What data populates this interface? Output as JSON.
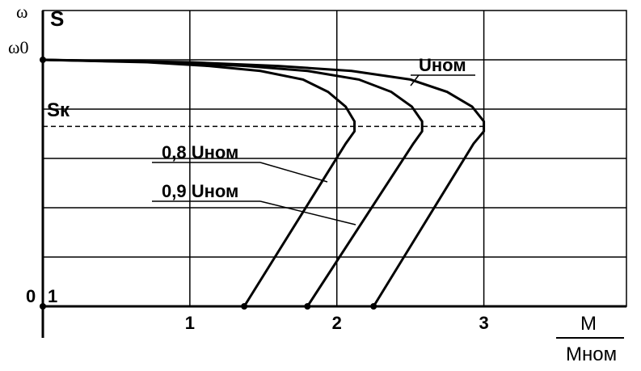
{
  "chart_data": {
    "type": "line",
    "x_label": {
      "numerator": "M",
      "denominator": "Mном"
    },
    "y_labels": [
      "ω",
      "S"
    ],
    "omega0_label": "ω0",
    "zero_label": "0",
    "sk_label": "Sк",
    "sk": 0.27,
    "xlim": [
      0,
      3.97
    ],
    "ylim": [
      -0.2,
      1
    ],
    "xticks": [
      1,
      2,
      3
    ],
    "yticks": [
      {
        "value": 1,
        "label": "1"
      }
    ],
    "ygrid": [
      0,
      0.2,
      0.4,
      0.6,
      0.8
    ],
    "grid": true,
    "color": "#000000",
    "series": [
      {
        "name": "Uном",
        "color": "#000000",
        "x": [
          0,
          1,
          1.6,
          2.1,
          2.5,
          2.75,
          2.92,
          3.0,
          3.0,
          2.93,
          2.25
        ],
        "values": [
          0,
          0.01,
          0.025,
          0.045,
          0.08,
          0.13,
          0.19,
          0.25,
          0.29,
          0.34,
          1
        ]
      },
      {
        "name": "0,9 Uном",
        "color": "#000000",
        "x": [
          0,
          0.86,
          1.38,
          1.8,
          2.15,
          2.37,
          2.51,
          2.58,
          2.58,
          2.52,
          1.8
        ],
        "values": [
          0,
          0.01,
          0.025,
          0.045,
          0.08,
          0.13,
          0.19,
          0.25,
          0.29,
          0.34,
          1
        ]
      },
      {
        "name": "0,8 Uном",
        "color": "#000000",
        "x": [
          0,
          0.71,
          1.13,
          1.48,
          1.77,
          1.94,
          2.06,
          2.12,
          2.12,
          2.06,
          1.37
        ],
        "values": [
          0,
          0.01,
          0.025,
          0.045,
          0.08,
          0.13,
          0.19,
          0.25,
          0.29,
          0.34,
          1
        ]
      }
    ]
  }
}
